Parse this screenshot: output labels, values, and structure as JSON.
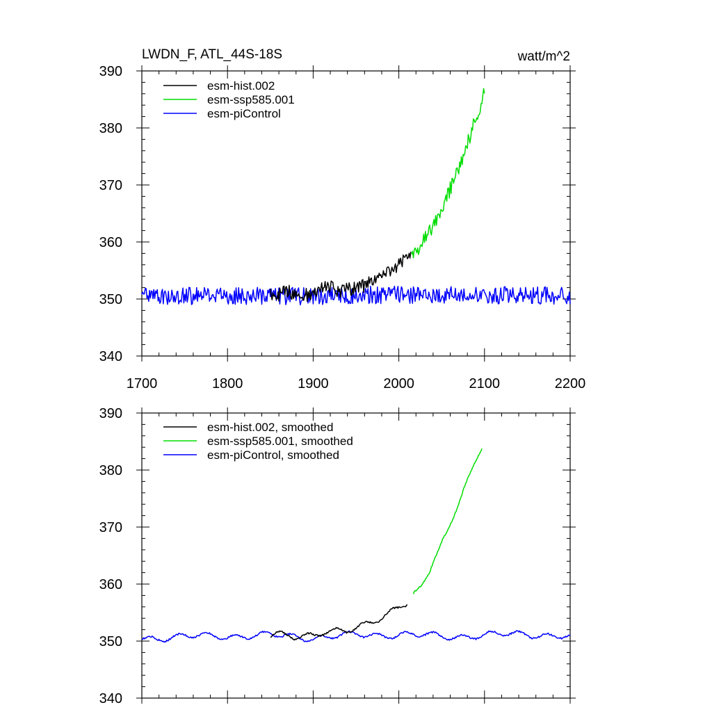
{
  "title_left": "LWDN_F, ATL_44S-18S",
  "title_right": "watt/m^2",
  "colors": {
    "hist": "#000000",
    "ssp": "#00dd00",
    "pi": "#0000ff"
  },
  "chart_data": [
    {
      "type": "line",
      "panel": "top",
      "xlim": [
        1700,
        2200
      ],
      "ylim": [
        340,
        390
      ],
      "xticks": [
        1700,
        1800,
        1900,
        2000,
        2100,
        2200
      ],
      "yticks": [
        340,
        350,
        360,
        370,
        380,
        390
      ],
      "xtick_labels": [
        "1700",
        "1800",
        "1900",
        "2000",
        "2100",
        "2200"
      ],
      "ytick_labels": [
        "340",
        "350",
        "360",
        "370",
        "380",
        "390"
      ],
      "legend": [
        "esm-hist.002",
        "esm-ssp585.001",
        "esm-piControl"
      ],
      "legend_position": "top-left",
      "series": [
        {
          "name": "esm-hist.002",
          "color_key": "hist",
          "x": [
            1850,
            1860,
            1870,
            1880,
            1890,
            1900,
            1910,
            1920,
            1930,
            1940,
            1950,
            1960,
            1970,
            1980,
            1990,
            2000,
            2014
          ],
          "y": [
            351,
            350.8,
            351.5,
            350.5,
            350.6,
            351.2,
            352,
            352.2,
            351.5,
            351.6,
            351.8,
            352.4,
            353,
            353.8,
            355,
            356,
            357.5
          ]
        },
        {
          "name": "esm-ssp585.001",
          "color_key": "ssp",
          "x": [
            2015,
            2025,
            2035,
            2045,
            2055,
            2065,
            2075,
            2085,
            2095,
            2100
          ],
          "y": [
            357.5,
            359.5,
            361.5,
            364.5,
            367.5,
            371,
            375,
            379.5,
            384,
            386
          ]
        },
        {
          "name": "esm-piControl",
          "color_key": "pi",
          "x": [
            1700,
            1800,
            1900,
            2000,
            2100,
            2200
          ],
          "y": [
            350.4,
            350.6,
            350.5,
            350.8,
            350.7,
            350.6
          ]
        }
      ]
    },
    {
      "type": "line",
      "panel": "bottom",
      "xlim": [
        1700,
        2200
      ],
      "ylim": [
        340,
        390
      ],
      "xticks": [
        1700,
        1800,
        1900,
        2000,
        2100,
        2200
      ],
      "yticks": [
        340,
        350,
        360,
        370,
        380,
        390
      ],
      "ytick_labels": [
        "340",
        "350",
        "360",
        "370",
        "380",
        "390"
      ],
      "legend": [
        "esm-hist.002, smoothed",
        "esm-ssp585.001, smoothed",
        "esm-piControl, smoothed"
      ],
      "legend_position": "top-left",
      "series": [
        {
          "name": "esm-hist.002, smoothed",
          "color_key": "hist",
          "x": [
            1850,
            1860,
            1870,
            1880,
            1890,
            1900,
            1910,
            1920,
            1930,
            1940,
            1950,
            1960,
            1970,
            1980,
            1990,
            2000,
            2010
          ],
          "y": [
            351,
            351.2,
            351,
            350.3,
            350.6,
            351,
            351.6,
            352,
            352.2,
            352,
            352.3,
            352.6,
            353,
            354,
            355,
            356,
            357
          ]
        },
        {
          "name": "esm-ssp585.001, smoothed",
          "color_key": "ssp",
          "x": [
            2017,
            2025,
            2035,
            2045,
            2055,
            2065,
            2075,
            2085,
            2097
          ],
          "y": [
            358,
            359.5,
            362,
            365,
            368.5,
            372.5,
            376.5,
            380,
            384.5
          ]
        },
        {
          "name": "esm-piControl, smoothed",
          "color_key": "pi",
          "x": [
            1700,
            1750,
            1800,
            1850,
            1900,
            1950,
            2000,
            2050,
            2100,
            2150,
            2200
          ],
          "y": [
            350.5,
            350.8,
            350.9,
            351,
            350.6,
            351,
            351.2,
            350.8,
            351,
            351.3,
            350.7
          ]
        }
      ]
    }
  ]
}
